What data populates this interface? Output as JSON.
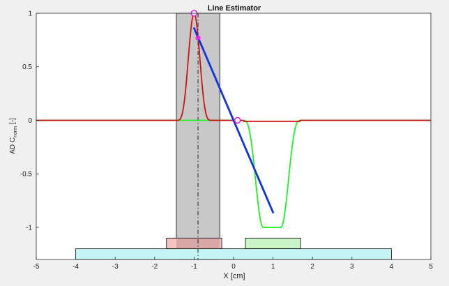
{
  "chart_data": {
    "type": "line",
    "title": "Line Estimator",
    "xlabel": "X [cm]",
    "ylabel": {
      "prefix": "AD C",
      "subscript": "norm",
      "suffix": "  [-]"
    },
    "xlim": [
      -5,
      5
    ],
    "ylim": [
      -1.3,
      1.0
    ],
    "xticks": [
      -5,
      -4,
      -3,
      -2,
      -1,
      0,
      1,
      2,
      3,
      4,
      5
    ],
    "yticks": [
      -1,
      -0.5,
      0,
      0.5,
      1
    ],
    "ytick_labels": [
      "-1",
      "-0.5",
      "0",
      "0.5",
      "1"
    ],
    "grid": false,
    "colors": {
      "red_curve": "#cc1111",
      "green_curve": "#22ee22",
      "blue_line": "#1133dd",
      "marker": "#e020e0",
      "gray_bar": "#c8c8c8",
      "pink_box": "#f4c4c4",
      "light_green_box": "#c8f4c8",
      "cyan_box": "#c4f4f4",
      "dashdot_line": "#222222"
    },
    "gray_bar": {
      "x0": -1.45,
      "x1": -0.35,
      "y0": -1.3,
      "y1": 1.0
    },
    "dashdot_line": {
      "x": -0.9
    },
    "red_pulse": {
      "center": -1.0,
      "half_width": 0.45,
      "amplitude": 1.0
    },
    "green_pulse": {
      "x_start": 0.25,
      "x_flat0": 0.75,
      "x_flat1": 1.2,
      "x_end": 1.7,
      "amplitude": -1.0
    },
    "red_dip": {
      "x0": 0.25,
      "x1": 1.7,
      "depth": -0.01
    },
    "blue_line": {
      "x": [
        -1.0,
        1.0
      ],
      "y": [
        0.86,
        -0.86
      ]
    },
    "markers_circle": [
      {
        "x": -1.0,
        "y": 1.0
      },
      {
        "x": 0.1,
        "y": 0.0
      }
    ],
    "marker_star": {
      "x": -0.9,
      "y": 0.77
    },
    "boxes": [
      {
        "name": "pink",
        "x0": -1.7,
        "x1": -0.3,
        "y0": -1.2,
        "y1": -1.1
      },
      {
        "name": "light-green",
        "x0": 0.3,
        "x1": 1.7,
        "y0": -1.2,
        "y1": -1.1
      },
      {
        "name": "cyan",
        "x0": -4.0,
        "x1": 4.0,
        "y0": -1.3,
        "y1": -1.2
      }
    ]
  }
}
